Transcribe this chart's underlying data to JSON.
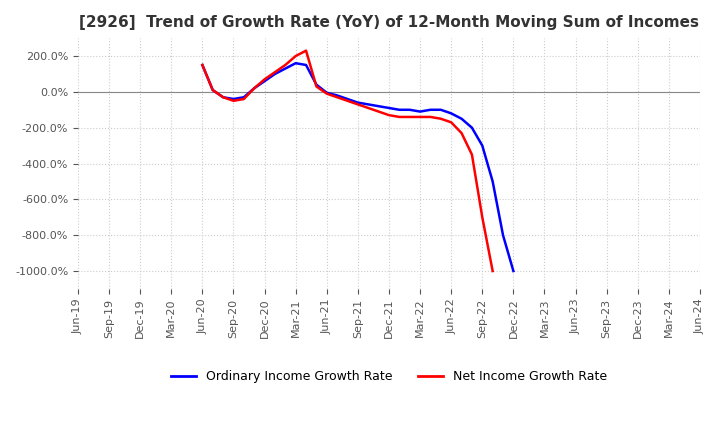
{
  "title": "[2926]  Trend of Growth Rate (YoY) of 12-Month Moving Sum of Incomes",
  "ylim": [
    -1100,
    300
  ],
  "yticks": [
    200,
    0,
    -200,
    -400,
    -600,
    -800,
    -1000
  ],
  "background_color": "#ffffff",
  "grid_color": "#cccccc",
  "ordinary_income": {
    "label": "Ordinary Income Growth Rate",
    "color": "blue",
    "x": [
      12,
      13,
      14,
      15,
      16,
      17,
      18,
      19,
      20,
      21,
      22,
      23,
      24,
      25,
      26,
      27,
      28,
      29,
      30,
      31,
      32,
      33,
      34,
      35,
      36,
      37,
      38,
      39,
      40,
      41,
      42
    ],
    "y": [
      150,
      10,
      -30,
      -40,
      -30,
      20,
      60,
      100,
      130,
      160,
      150,
      40,
      -5,
      -20,
      -40,
      -60,
      -70,
      -80,
      -90,
      -100,
      -100,
      -110,
      -100,
      -100,
      -120,
      -150,
      -200,
      -300,
      -500,
      -800,
      -1000
    ]
  },
  "net_income": {
    "label": "Net Income Growth Rate",
    "color": "red",
    "x": [
      12,
      13,
      14,
      15,
      16,
      17,
      18,
      19,
      20,
      21,
      22,
      23,
      24,
      25,
      26,
      27,
      28,
      29,
      30,
      31,
      32,
      33,
      34,
      35,
      36,
      37,
      38,
      39,
      40
    ],
    "y": [
      150,
      10,
      -30,
      -50,
      -40,
      20,
      70,
      110,
      150,
      200,
      230,
      30,
      -10,
      -30,
      -50,
      -70,
      -90,
      -110,
      -130,
      -140,
      -140,
      -140,
      -140,
      -150,
      -170,
      -230,
      -350,
      -700,
      -1000
    ]
  },
  "xtick_labels": [
    "Jun-19",
    "Sep-19",
    "Dec-19",
    "Mar-20",
    "Jun-20",
    "Sep-20",
    "Dec-20",
    "Mar-21",
    "Jun-21",
    "Sep-21",
    "Dec-21",
    "Mar-22",
    "Jun-22",
    "Sep-22",
    "Dec-22",
    "Mar-23",
    "Jun-23",
    "Sep-23",
    "Dec-23",
    "Mar-24",
    "Jun-24"
  ],
  "xtick_positions": [
    0,
    3,
    6,
    9,
    12,
    15,
    18,
    21,
    24,
    27,
    30,
    33,
    36,
    39,
    42,
    45,
    48,
    51,
    54,
    57,
    60
  ]
}
